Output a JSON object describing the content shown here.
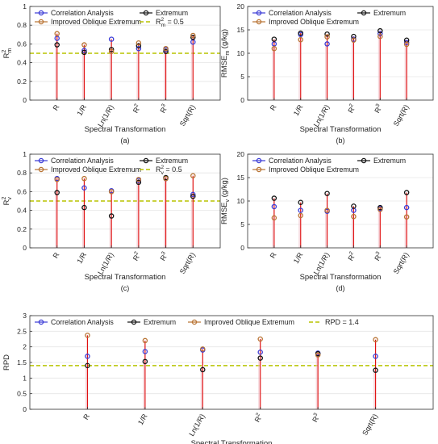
{
  "colors": {
    "correlation": "#3b3bd6",
    "extremum": "#111111",
    "improved": "#b87333",
    "stem": "#e01010",
    "threshold": "#b8c400",
    "grid": "#e6e6e6",
    "axis": "#333333"
  },
  "legend_labels": {
    "correlation": "Correlation Analysis",
    "extremum": "Extremum",
    "improved": "Improved Oblique Extremum"
  },
  "chart_data": [
    {
      "id": "a",
      "type": "stem",
      "panel_label": "(a)",
      "xlabel": "Spectral Transformation",
      "ylabel": "R²m",
      "ylabel_base": "R",
      "ylabel_sup": "2",
      "ylabel_sub": "m",
      "categories": [
        "R",
        "1/R",
        "Ln(1/R)",
        "R²",
        "R³",
        "Sqrt(R)"
      ],
      "ylim": [
        0,
        1
      ],
      "yticks": [
        "0",
        "0.2",
        "0.4",
        "0.6",
        "0.8",
        "1"
      ],
      "threshold": 0.5,
      "threshold_label": "R²m = 0.5",
      "series": [
        {
          "name": "Correlation Analysis",
          "key": "correlation",
          "values": [
            0.66,
            0.53,
            0.65,
            0.55,
            0.54,
            0.62
          ]
        },
        {
          "name": "Extremum",
          "key": "extremum",
          "values": [
            0.59,
            0.51,
            0.54,
            0.58,
            0.52,
            0.67
          ]
        },
        {
          "name": "Improved Oblique Extremum",
          "key": "improved",
          "values": [
            0.71,
            0.59,
            0.52,
            0.61,
            0.55,
            0.69
          ]
        }
      ],
      "legend_columns": [
        [
          "Correlation Analysis",
          "Improved Oblique Extremum"
        ],
        [
          "Extremum",
          "R²m = 0.5"
        ]
      ]
    },
    {
      "id": "b",
      "type": "stem",
      "panel_label": "(b)",
      "xlabel": "Spectral Transformation",
      "ylabel": "RMSEm (g/kg)",
      "ylabel_base": "RMSE",
      "ylabel_sup": "",
      "ylabel_sub": "m",
      "ylabel_unit": " (g/kg)",
      "categories": [
        "R",
        "1/R",
        "Ln(1/R)",
        "R²",
        "R³",
        "Sqrt(R)"
      ],
      "ylim": [
        0,
        20
      ],
      "yticks": [
        "0",
        "5",
        "10",
        "15",
        "20"
      ],
      "series": [
        {
          "name": "Correlation Analysis",
          "key": "correlation",
          "values": [
            12.0,
            14.0,
            12.0,
            13.0,
            14.2,
            12.3
          ]
        },
        {
          "name": "Extremum",
          "key": "extremum",
          "values": [
            13.0,
            14.3,
            14.1,
            13.6,
            14.8,
            12.8
          ]
        },
        {
          "name": "Improved Oblique Extremum",
          "key": "improved",
          "values": [
            11.0,
            12.9,
            13.5,
            12.8,
            13.6,
            11.9
          ]
        }
      ],
      "legend_columns": [
        [
          "Correlation Analysis",
          "Improved Oblique Extremum"
        ],
        [
          "Extremum"
        ]
      ]
    },
    {
      "id": "c",
      "type": "stem",
      "panel_label": "(c)",
      "xlabel": "Spectral Transformation",
      "ylabel": "R²v",
      "ylabel_base": "R",
      "ylabel_sup": "2",
      "ylabel_sub": "v",
      "categories": [
        "R",
        "1/R",
        "Ln(1/R)",
        "R²",
        "R³",
        "Sqrt(R)"
      ],
      "ylim": [
        0,
        1
      ],
      "yticks": [
        "0",
        "0.2",
        "0.4",
        "0.6",
        "0.8",
        "1"
      ],
      "threshold": 0.5,
      "threshold_label": "R²v = 0.5",
      "series": [
        {
          "name": "Correlation Analysis",
          "key": "correlation",
          "values": [
            0.74,
            0.64,
            0.61,
            0.72,
            0.74,
            0.57
          ]
        },
        {
          "name": "Extremum",
          "key": "extremum",
          "values": [
            0.59,
            0.43,
            0.34,
            0.7,
            0.75,
            0.55
          ]
        },
        {
          "name": "Improved Oblique Extremum",
          "key": "improved",
          "values": [
            0.73,
            0.74,
            0.6,
            0.73,
            0.74,
            0.77
          ]
        }
      ],
      "legend_columns": [
        [
          "Correlation Analysis",
          "Improved Oblique Extremum"
        ],
        [
          "Extremum",
          "R²v = 0.5"
        ]
      ]
    },
    {
      "id": "d",
      "type": "stem",
      "panel_label": "(d)",
      "xlabel": "Spectral Transformation",
      "ylabel": "RMSEv (g/kg)",
      "ylabel_base": "RMSE",
      "ylabel_sup": "",
      "ylabel_sub": "v",
      "ylabel_unit": " (g/kg)",
      "categories": [
        "R",
        "1/R",
        "Ln(1/R)",
        "R²",
        "R³",
        "Sqrt(R)"
      ],
      "ylim": [
        0,
        20
      ],
      "yticks": [
        "0",
        "5",
        "10",
        "15",
        "20"
      ],
      "series": [
        {
          "name": "Correlation Analysis",
          "key": "correlation",
          "values": [
            8.8,
            8.0,
            7.8,
            8.0,
            8.4,
            8.6
          ]
        },
        {
          "name": "Extremum",
          "key": "extremum",
          "values": [
            10.6,
            9.7,
            11.6,
            8.9,
            8.6,
            11.8
          ]
        },
        {
          "name": "Improved Oblique Extremum",
          "key": "improved",
          "values": [
            6.4,
            6.9,
            8.0,
            6.7,
            8.2,
            6.6
          ]
        }
      ],
      "legend_columns": [
        [
          "Correlation Analysis",
          "Improved Oblique Extremum"
        ],
        [
          "Extremum"
        ]
      ]
    },
    {
      "id": "e",
      "type": "stem",
      "panel_label": "(e)",
      "xlabel": "Spectral Transformation",
      "ylabel": "RPD",
      "ylabel_base": "RPD",
      "ylabel_sup": "",
      "ylabel_sub": "",
      "categories": [
        "R",
        "1/R",
        "Ln(1/R)",
        "R²",
        "R³",
        "Sqrt(R)"
      ],
      "ylim": [
        0,
        3
      ],
      "yticks": [
        "0",
        "0.5",
        "1",
        "1.5",
        "2",
        "2.5",
        "3"
      ],
      "threshold": 1.4,
      "threshold_label": "RPD = 1.4",
      "series": [
        {
          "name": "Correlation Analysis",
          "key": "correlation",
          "values": [
            1.7,
            1.85,
            1.9,
            1.83,
            1.8,
            1.7
          ]
        },
        {
          "name": "Extremum",
          "key": "extremum",
          "values": [
            1.4,
            1.53,
            1.27,
            1.64,
            1.78,
            1.25
          ]
        },
        {
          "name": "Improved Oblique Extremum",
          "key": "improved",
          "values": [
            2.37,
            2.2,
            1.93,
            2.25,
            1.74,
            2.23
          ]
        }
      ],
      "legend_columns": [
        [
          "Correlation Analysis"
        ],
        [
          "Extremum"
        ],
        [
          "Improved Oblique Extremum"
        ],
        [
          "RPD = 1.4"
        ]
      ]
    }
  ]
}
